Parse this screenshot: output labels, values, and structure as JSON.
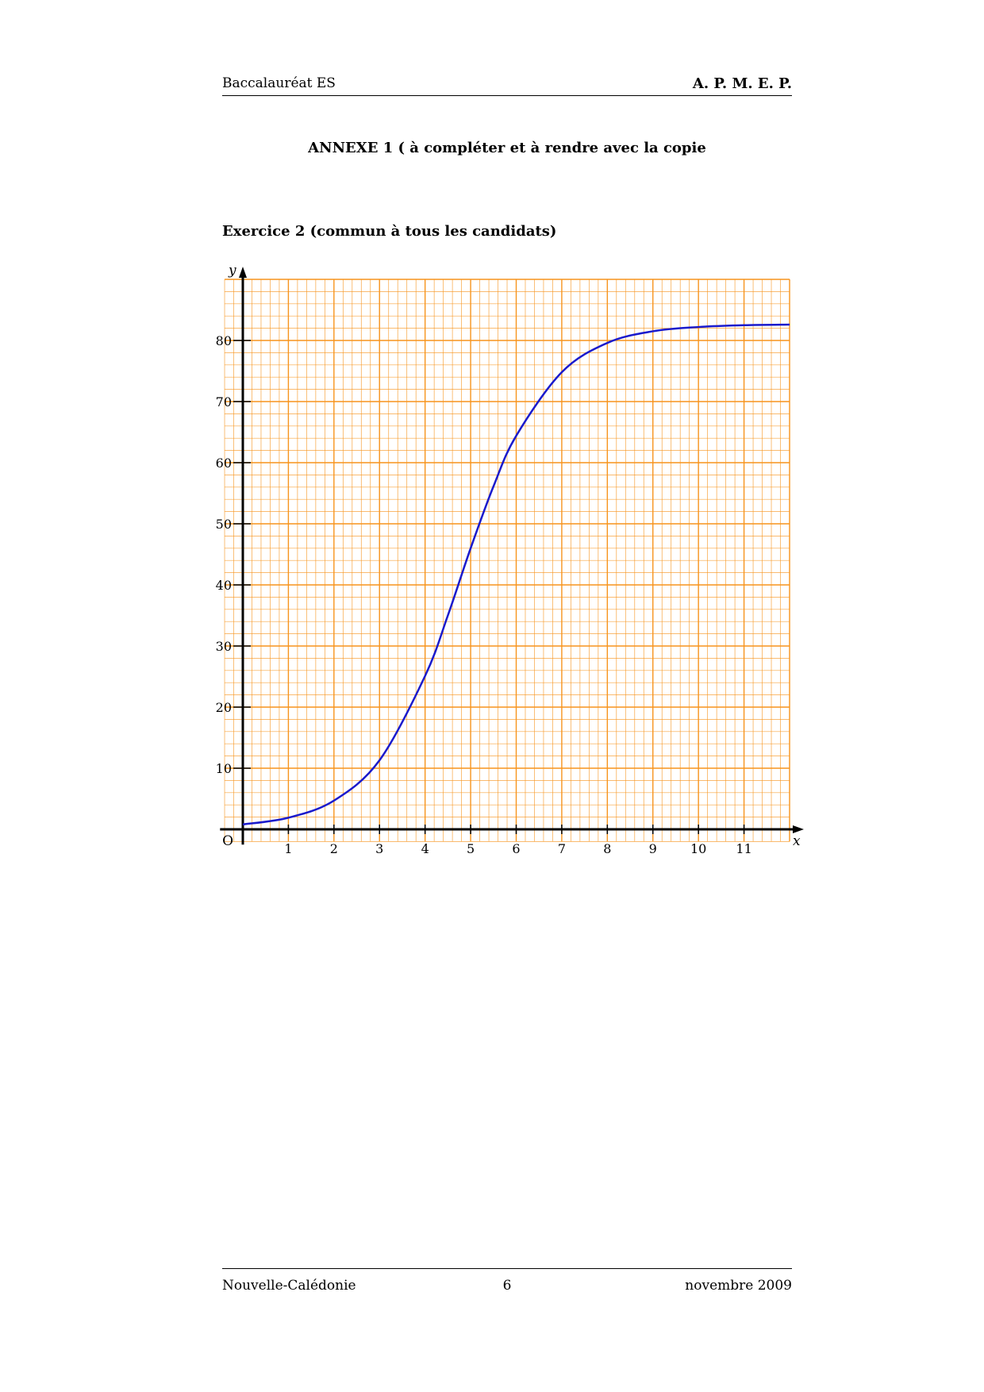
{
  "header": {
    "left": "Baccalauréat ES",
    "right": "A. P. M. E. P."
  },
  "annexe_title": "ANNEXE 1 ( à compléter et à rendre avec la copie",
  "exercise_title": "Exercice 2 (commun à tous les candidats)",
  "chart_data": {
    "type": "line",
    "xlabel": "x",
    "ylabel": "y",
    "origin_label": "O",
    "xlim": [
      0,
      12
    ],
    "ylim": [
      0,
      90
    ],
    "x_ticks": [
      "1",
      "2",
      "3",
      "4",
      "5",
      "6",
      "7",
      "8",
      "9",
      "10",
      "11"
    ],
    "y_ticks": [
      "10",
      "20",
      "30",
      "40",
      "50",
      "60",
      "70",
      "80"
    ],
    "grid": true,
    "grid_color": "#f7941d",
    "curve_color": "#1a1acc",
    "series": [
      {
        "x": [
          0,
          1,
          2,
          3,
          4,
          4.5,
          5,
          5.5,
          6,
          7,
          8,
          9,
          10,
          11,
          12
        ],
        "y": [
          0.8,
          1.9,
          4.7,
          11.3,
          25.1,
          35.0,
          46.0,
          56.1,
          64.4,
          74.8,
          79.6,
          81.5,
          82.2,
          82.5,
          82.6
        ]
      }
    ]
  },
  "footer": {
    "left": "Nouvelle-Calédonie",
    "center": "6",
    "right": "novembre 2009"
  }
}
